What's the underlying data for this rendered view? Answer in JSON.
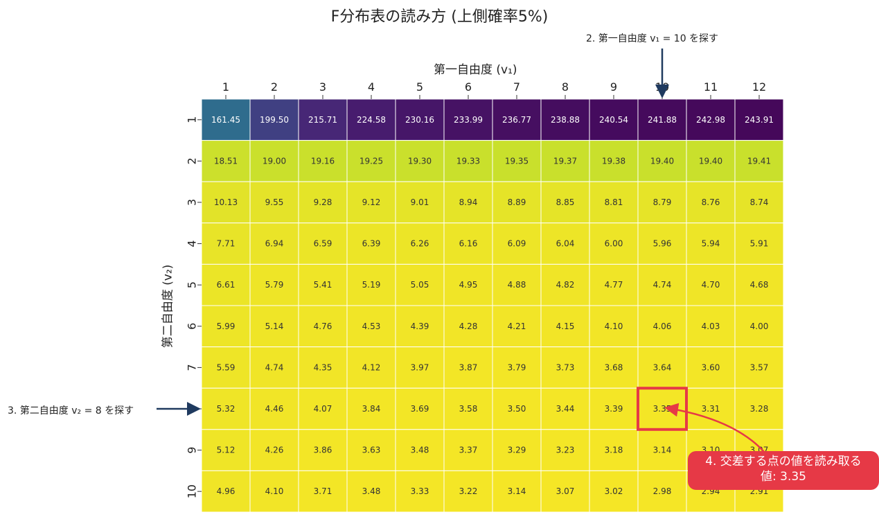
{
  "chart_data": {
    "type": "heatmap",
    "title": "F分布表の読み方 (上側確率5%)",
    "xlabel": "第一自由度 (v₁)",
    "ylabel": "第二自由度 (v₂)",
    "x_ticks": [
      "1",
      "2",
      "3",
      "4",
      "5",
      "6",
      "7",
      "8",
      "9",
      "10",
      "11",
      "12"
    ],
    "y_ticks": [
      "1",
      "2",
      "3",
      "4",
      "5",
      "6",
      "7",
      "8",
      "9",
      "10"
    ],
    "colormap": "viridis",
    "colormap_range": [
      0,
      250
    ],
    "values": [
      [
        161.45,
        199.5,
        215.71,
        224.58,
        230.16,
        233.99,
        236.77,
        238.88,
        240.54,
        241.88,
        242.98,
        243.91
      ],
      [
        18.51,
        19.0,
        19.16,
        19.25,
        19.3,
        19.33,
        19.35,
        19.37,
        19.38,
        19.4,
        19.4,
        19.41
      ],
      [
        10.13,
        9.55,
        9.28,
        9.12,
        9.01,
        8.94,
        8.89,
        8.85,
        8.81,
        8.79,
        8.76,
        8.74
      ],
      [
        7.71,
        6.94,
        6.59,
        6.39,
        6.26,
        6.16,
        6.09,
        6.04,
        6.0,
        5.96,
        5.94,
        5.91
      ],
      [
        6.61,
        5.79,
        5.41,
        5.19,
        5.05,
        4.95,
        4.88,
        4.82,
        4.77,
        4.74,
        4.7,
        4.68
      ],
      [
        5.99,
        5.14,
        4.76,
        4.53,
        4.39,
        4.28,
        4.21,
        4.15,
        4.1,
        4.06,
        4.03,
        4.0
      ],
      [
        5.59,
        4.74,
        4.35,
        4.12,
        3.97,
        3.87,
        3.79,
        3.73,
        3.68,
        3.64,
        3.6,
        3.57
      ],
      [
        5.32,
        4.46,
        4.07,
        3.84,
        3.69,
        3.58,
        3.5,
        3.44,
        3.39,
        3.35,
        3.31,
        3.28
      ],
      [
        5.12,
        4.26,
        3.86,
        3.63,
        3.48,
        3.37,
        3.29,
        3.23,
        3.18,
        3.14,
        3.1,
        3.07
      ],
      [
        4.96,
        4.1,
        3.71,
        3.48,
        3.33,
        3.22,
        3.14,
        3.07,
        3.02,
        2.98,
        2.94,
        2.91
      ]
    ],
    "highlight": {
      "row": 8,
      "col": 10,
      "color": "#e63946"
    },
    "annotations": {
      "v1": "2. 第一自由度 v₁ = 10 を探す",
      "v2": "3. 第二自由度 v₂ = 8 を探す",
      "result_line1": "4. 交差する点の値を読み取る",
      "result_line2": "値: 3.35"
    },
    "colors": {
      "arrow": "#1f3a5f",
      "highlight": "#e63946"
    }
  }
}
